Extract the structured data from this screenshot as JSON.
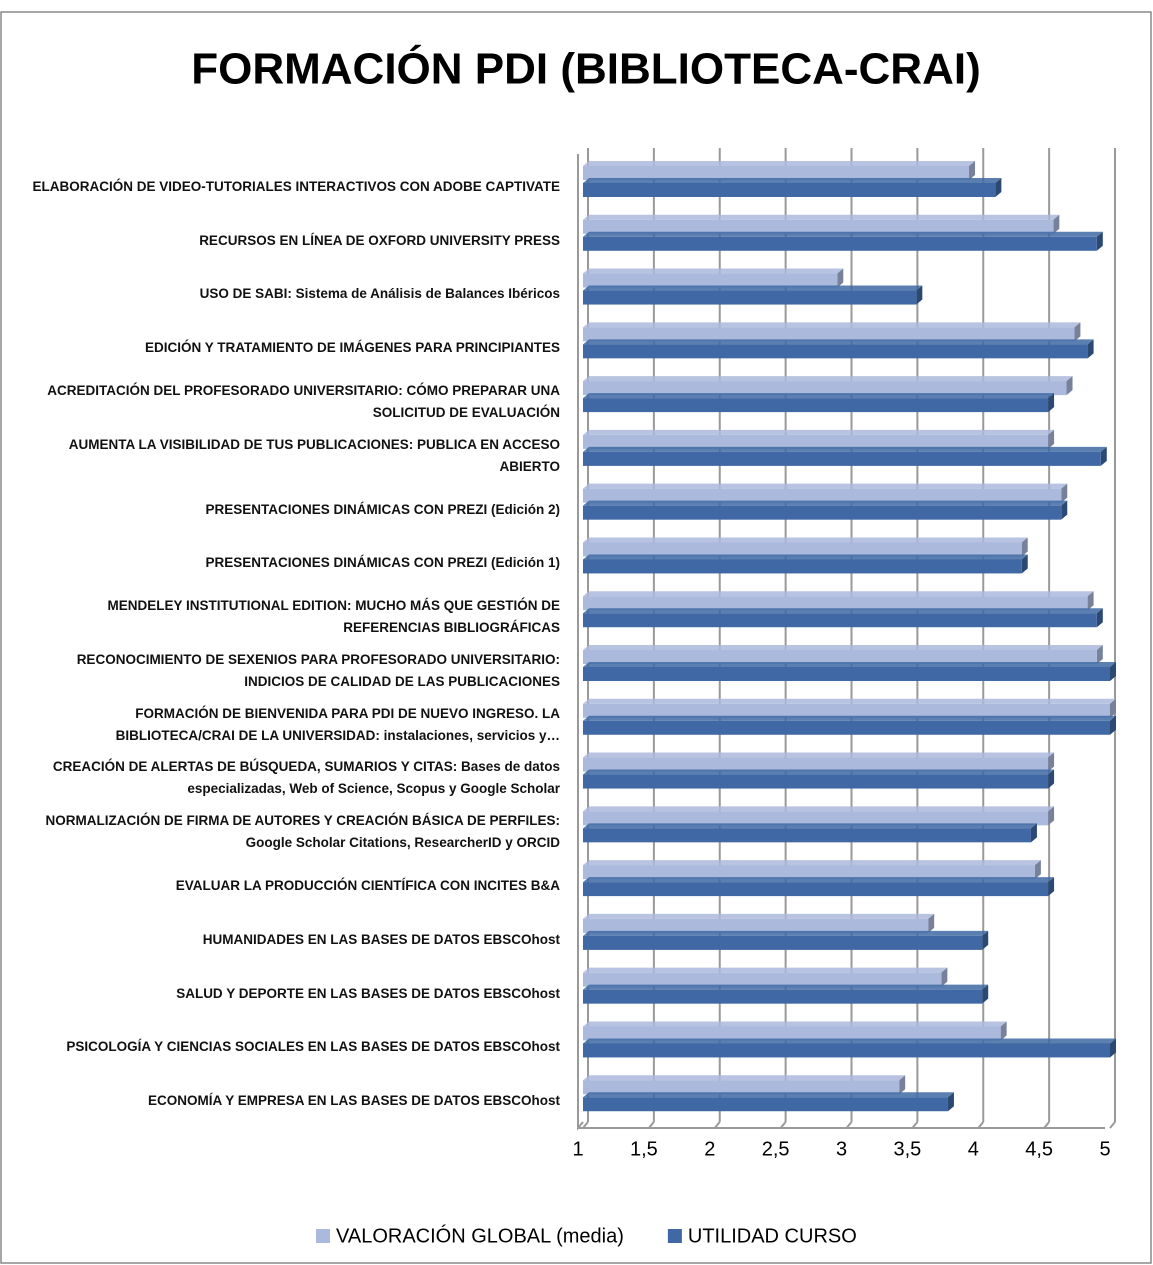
{
  "chart_data": {
    "type": "bar",
    "orientation": "horizontal",
    "title": "FORMACIÓN PDI (BIBLIOTECA-CRAI)",
    "categories": [
      "ELABORACIÓN DE VIDEO-TUTORIALES INTERACTIVOS CON ADOBE CAPTIVATE",
      "RECURSOS EN LÍNEA DE OXFORD UNIVERSITY PRESS",
      "USO DE SABI: Sistema de Análisis de Balances Ibéricos",
      "EDICIÓN Y TRATAMIENTO DE IMÁGENES PARA PRINCIPIANTES",
      "ACREDITACIÓN DEL PROFESORADO UNIVERSITARIO: CÓMO PREPARAR UNA SOLICITUD DE EVALUACIÓN",
      "AUMENTA LA VISIBILIDAD DE TUS PUBLICACIONES: PUBLICA EN ACCESO ABIERTO",
      "PRESENTACIONES DINÁMICAS CON PREZI (Edición 2)",
      "PRESENTACIONES DINÁMICAS CON PREZI (Edición 1)",
      "MENDELEY INSTITUTIONAL EDITION: MUCHO MÁS QUE GESTIÓN DE REFERENCIAS BIBLIOGRÁFICAS",
      "RECONOCIMIENTO DE SEXENIOS PARA PROFESORADO UNIVERSITARIO: INDICIOS DE CALIDAD DE LAS PUBLICACIONES",
      "FORMACIÓN DE BIENVENIDA PARA PDI DE NUEVO INGRESO. LA BIBLIOTECA/CRAI DE LA UNIVERSIDAD: instalaciones, servicios y…",
      "CREACIÓN DE ALERTAS DE BÚSQUEDA, SUMARIOS Y CITAS: Bases de datos especializadas, Web of Science, Scopus y Google Scholar",
      "NORMALIZACIÓN DE FIRMA DE AUTORES Y CREACIÓN BÁSICA DE PERFILES: Google Scholar Citations, ResearcherID y ORCID",
      "EVALUAR LA PRODUCCIÓN CIENTÍFICA CON INCITES B&A",
      "HUMANIDADES EN LAS BASES DE DATOS EBSCOhost",
      "SALUD Y DEPORTE EN LAS BASES DE DATOS EBSCOhost",
      "PSICOLOGÍA Y CIENCIAS SOCIALES EN LAS BASES DE DATOS EBSCOhost",
      "ECONOMÍA Y EMPRESA EN LAS BASES DE DATOS EBSCOhost"
    ],
    "series": [
      {
        "name": "VALORACIÓN GLOBAL (media)",
        "color": "#aab9dc",
        "values": [
          3.93,
          4.57,
          2.93,
          4.73,
          4.67,
          4.53,
          4.63,
          4.33,
          4.83,
          4.9,
          5,
          4.53,
          4.53,
          4.43,
          3.62,
          3.72,
          4.17,
          3.4
        ]
      },
      {
        "name": "UTILIDAD CURSO",
        "color": "#3f68a4",
        "values": [
          4.13,
          4.9,
          3.53,
          4.83,
          4.53,
          4.93,
          4.63,
          4.33,
          4.9,
          5,
          5,
          4.53,
          4.4,
          4.53,
          4.03,
          4.03,
          5,
          3.77
        ]
      }
    ],
    "xlim": [
      1,
      5
    ],
    "xticks": [
      1,
      {
        "value": 1.5,
        "label": "1,5"
      },
      2,
      {
        "value": 2.5,
        "label": "2,5"
      },
      3,
      {
        "value": 3.5,
        "label": "3,5"
      },
      4,
      {
        "value": 4.5,
        "label": "4,5"
      },
      5
    ],
    "grid": true,
    "legend": "bottom"
  }
}
